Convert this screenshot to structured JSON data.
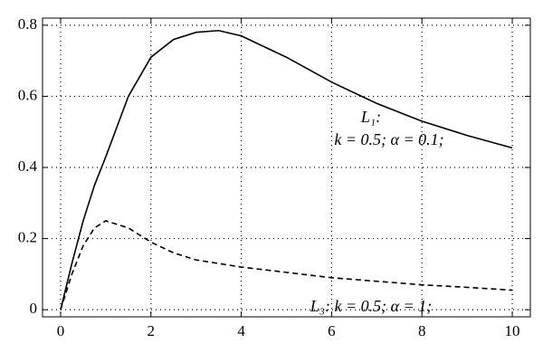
{
  "chart_data": {
    "type": "line",
    "x": [
      0,
      0.25,
      0.5,
      0.75,
      1,
      1.5,
      2,
      2.5,
      3,
      3.5,
      4,
      5,
      6,
      7,
      8,
      9,
      10
    ],
    "series": [
      {
        "color": "#000000",
        "dash": "solid",
        "values": [
          0,
          0.13,
          0.25,
          0.35,
          0.43,
          0.6,
          0.71,
          0.76,
          0.78,
          0.785,
          0.77,
          0.71,
          0.64,
          0.58,
          0.53,
          0.49,
          0.455
        ]
      },
      {
        "color": "#000000",
        "dash": "dashed",
        "values": [
          0,
          0.1,
          0.18,
          0.23,
          0.25,
          0.23,
          0.19,
          0.16,
          0.14,
          0.13,
          0.12,
          0.105,
          0.09,
          0.08,
          0.07,
          0.063,
          0.055
        ]
      }
    ],
    "annotations": [
      "L₁:",
      "k = 0.5; α = 0.1;",
      "L₃: k = 0.5; α = 1;"
    ],
    "xlim": [
      -0.4,
      10.4
    ],
    "xticks": [
      0,
      2,
      4,
      6,
      8,
      10
    ],
    "ylim": [
      -0.02,
      0.82
    ],
    "yticks": [
      0,
      0.2,
      0.4,
      0.6,
      0.8
    ],
    "grid": true
  }
}
